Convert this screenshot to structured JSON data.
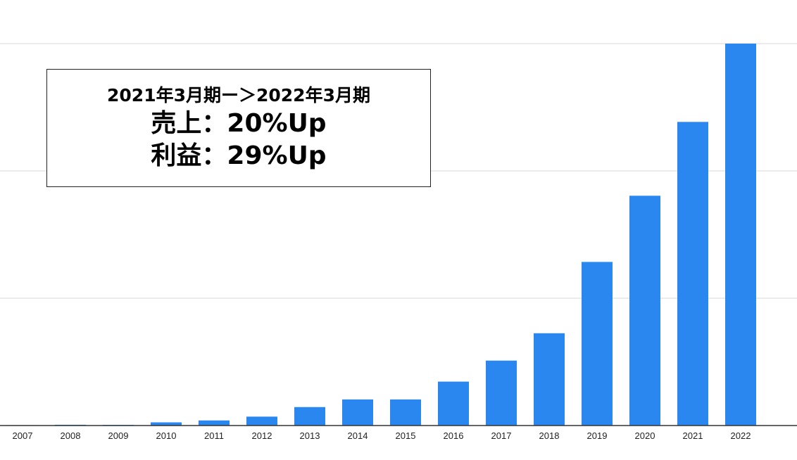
{
  "chart_data": {
    "type": "bar",
    "categories": [
      "2007",
      "2008",
      "2009",
      "2010",
      "2011",
      "2012",
      "2013",
      "2014",
      "2015",
      "2016",
      "2017",
      "2018",
      "2019",
      "2020",
      "2021",
      "2022"
    ],
    "values": [
      0.3,
      0.6,
      0.5,
      2.5,
      4,
      7,
      14.5,
      20.5,
      20.5,
      34.5,
      51,
      72.5,
      128.5,
      180.5,
      238.5,
      300
    ],
    "ylim": [
      0,
      300
    ],
    "yticks": [
      0,
      100,
      200,
      300
    ],
    "grid": true,
    "bar_color": "#2b87f0",
    "title": "",
    "xlabel": "",
    "ylabel": ""
  },
  "annotation": {
    "line1": "2021年3月期ー＞2022年3月期",
    "line2": "売上：20%Up",
    "line3": "利益：29%Up"
  }
}
